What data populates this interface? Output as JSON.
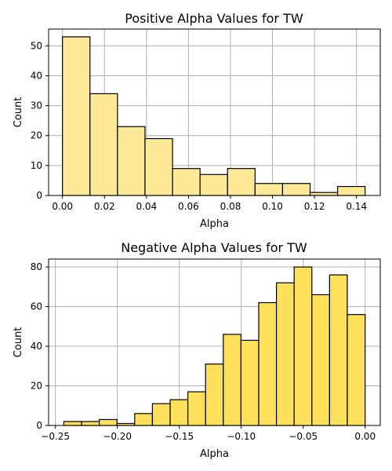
{
  "chart_data": [
    {
      "type": "bar",
      "subtype": "histogram",
      "title": "Positive Alpha Values for TW",
      "xlabel": "Alpha",
      "ylabel": "Count",
      "xlim": [
        -0.0066,
        0.1513
      ],
      "ylim": [
        0,
        55.6
      ],
      "xticks": [
        "0.00",
        "0.02",
        "0.04",
        "0.06",
        "0.08",
        "0.10",
        "0.12",
        "0.14"
      ],
      "yticks": [
        "0",
        "10",
        "20",
        "30",
        "40",
        "50"
      ],
      "bin_edges": [
        0.0,
        0.0131,
        0.0262,
        0.0393,
        0.0524,
        0.0655,
        0.0786,
        0.0917,
        0.1048,
        0.1179,
        0.131,
        0.1441
      ],
      "values": [
        53,
        34,
        23,
        19,
        9,
        7,
        9,
        4,
        4,
        1,
        3
      ],
      "color": "#fee999",
      "grid": true
    },
    {
      "type": "bar",
      "subtype": "histogram",
      "title": "Negative Alpha Values for TW",
      "xlabel": "Alpha",
      "ylabel": "Count",
      "xlim": [
        -0.2555,
        0.0122
      ],
      "ylim": [
        0,
        84
      ],
      "xticks": [
        "-0.25",
        "-0.20",
        "-0.15",
        "-0.10",
        "-0.05",
        "0.00"
      ],
      "yticks": [
        "0",
        "20",
        "40",
        "60",
        "80"
      ],
      "bin_edges": [
        -0.2432,
        -0.2289,
        -0.2146,
        -0.2003,
        -0.186,
        -0.1717,
        -0.1574,
        -0.1431,
        -0.1288,
        -0.1145,
        -0.1002,
        -0.0859,
        -0.0716,
        -0.0573,
        -0.043,
        -0.0287,
        -0.0144,
        0.0
      ],
      "values": [
        2,
        2,
        3,
        1,
        6,
        11,
        13,
        17,
        31,
        46,
        43,
        62,
        72,
        80,
        66,
        76,
        56
      ],
      "color": "#ffe05b",
      "grid": true
    }
  ]
}
